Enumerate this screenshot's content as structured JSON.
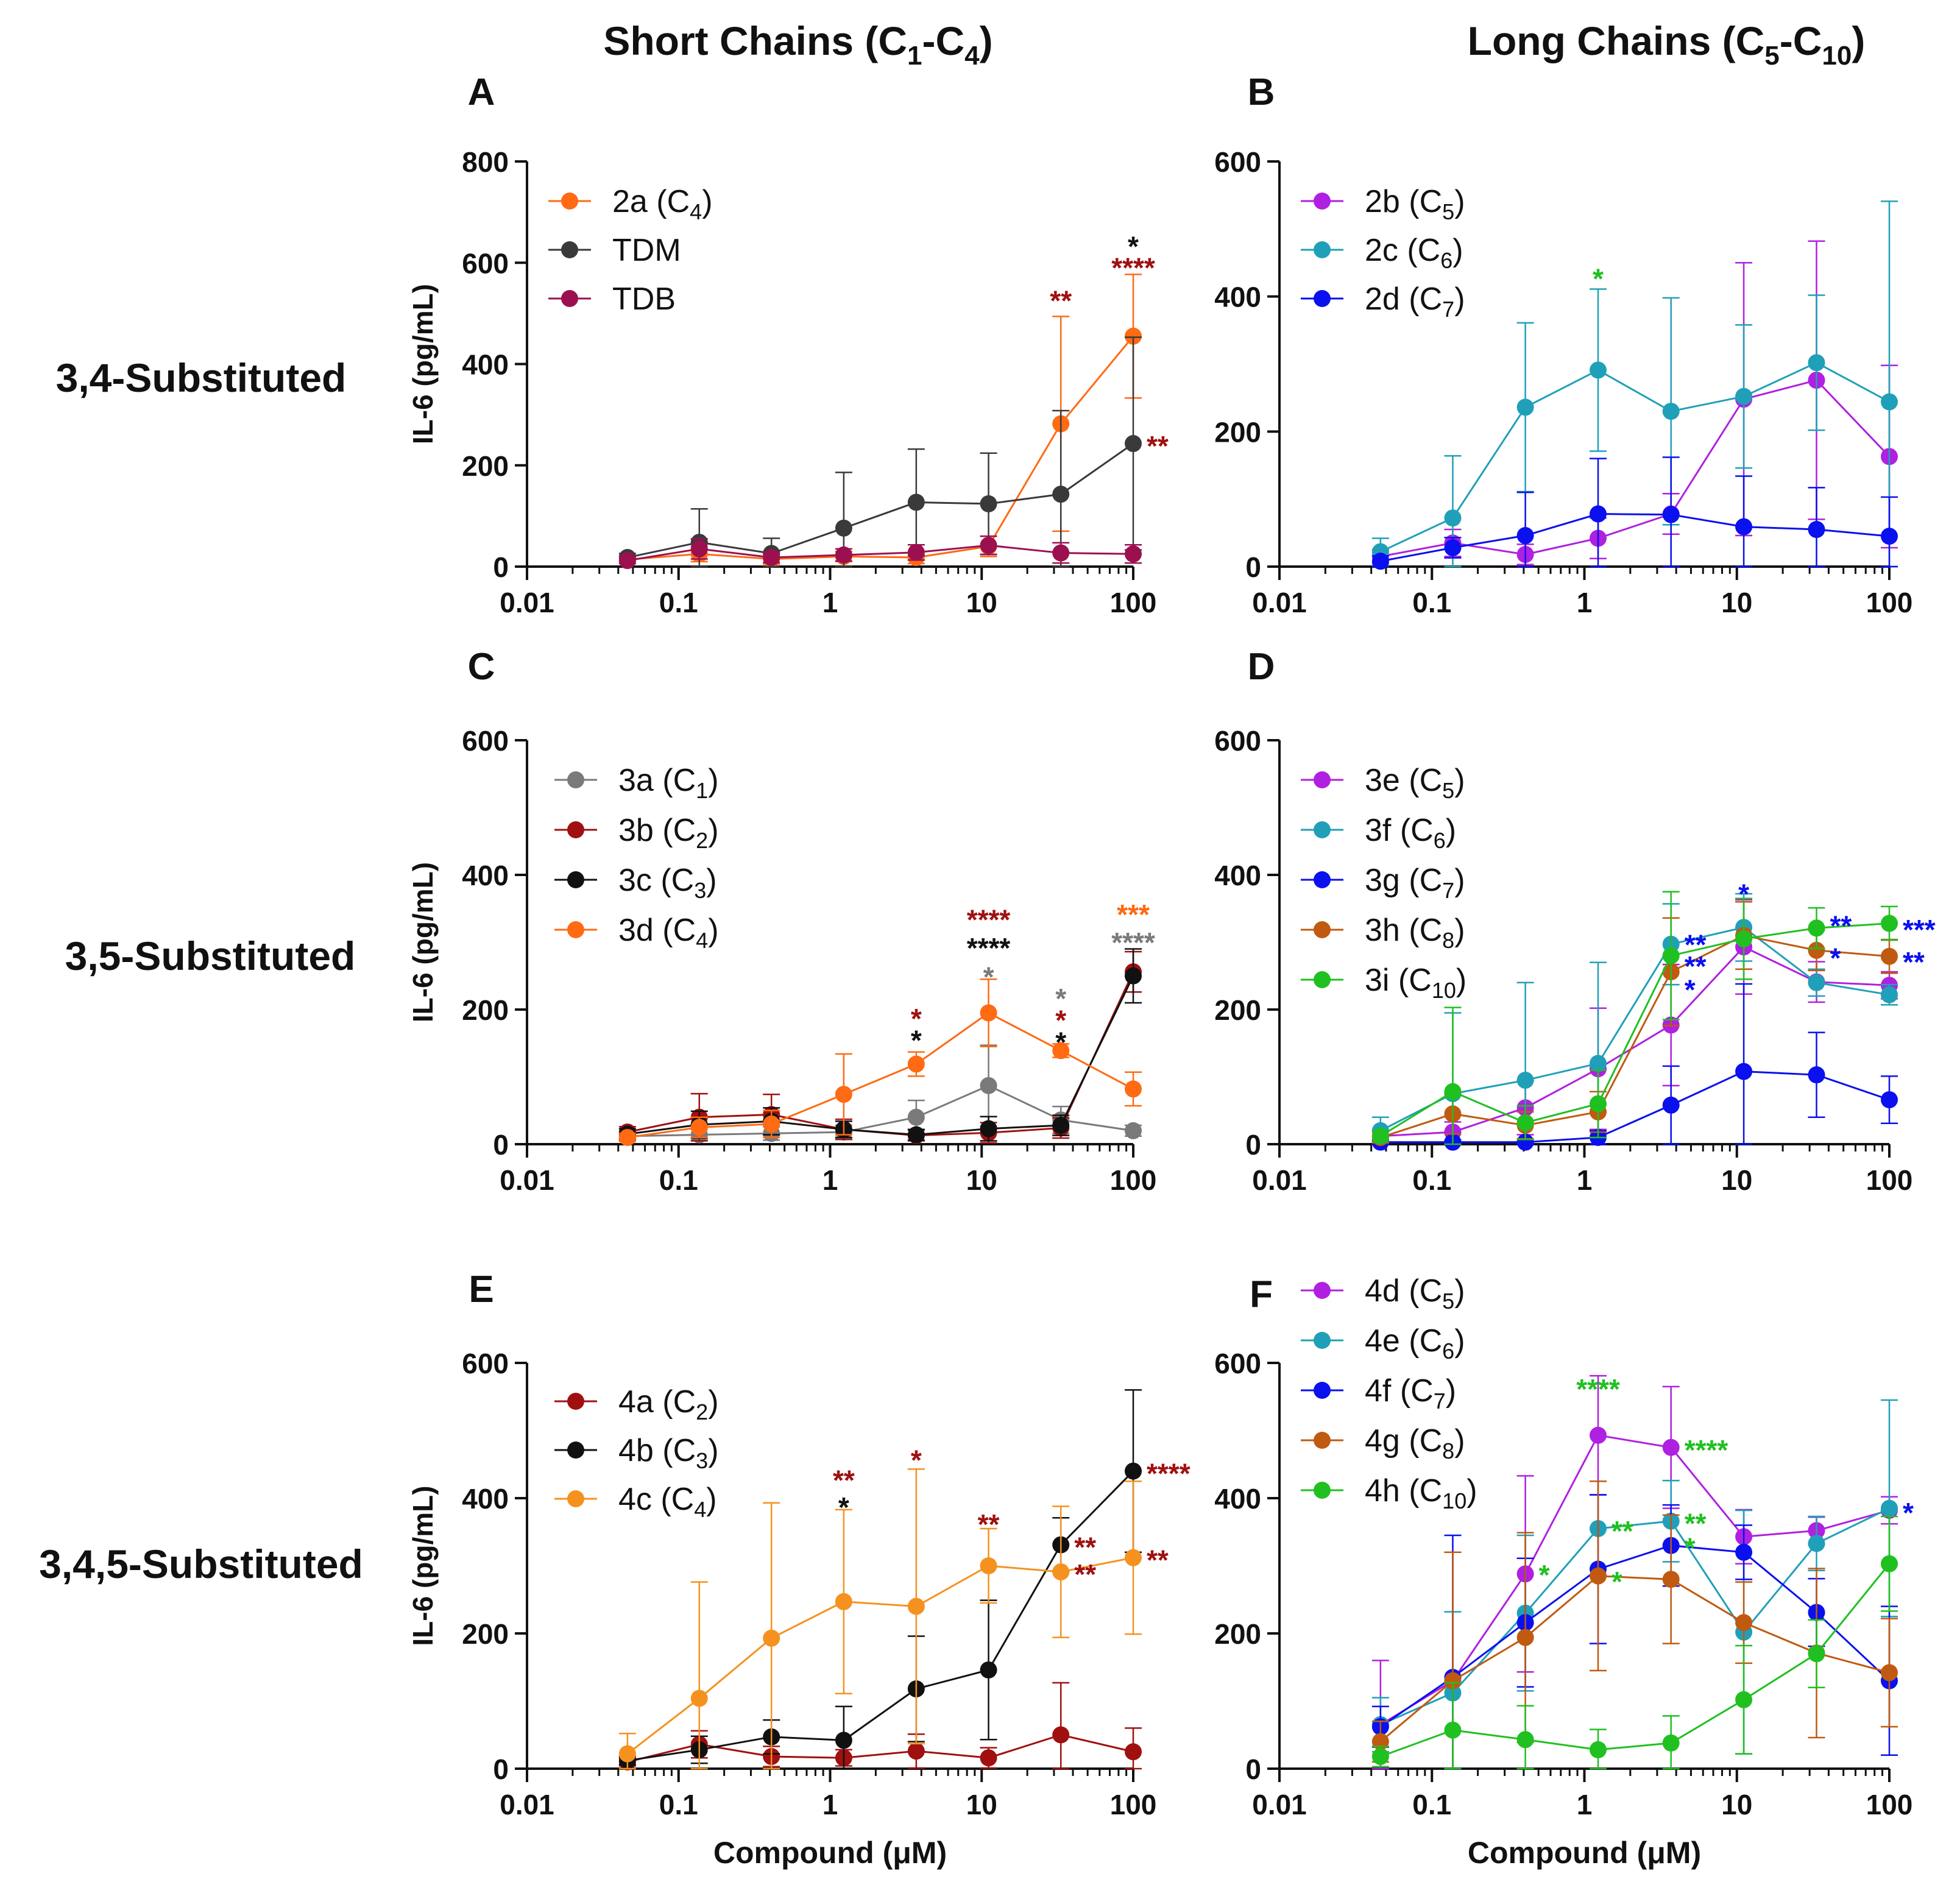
{
  "figure": {
    "col_headers": [
      {
        "main": "Short Chains (C",
        "s1": "1",
        "dash": "-C",
        "s2": "4",
        "close": ")"
      },
      {
        "main": "Long Chains (C",
        "s1": "5",
        "dash": "-C",
        "s2": "10",
        "close": ")"
      }
    ],
    "row_labels": [
      "3,4-Substituted",
      "3,5-Substituted",
      "3,4,5-Substituted"
    ],
    "colors": {
      "orange": "#ff6a13",
      "orange2": "#f5921f",
      "darkgray": "#3a3a3a",
      "gray": "#7a7a7a",
      "maroon": "#9c1050",
      "darkred": "#a01010",
      "black": "#111111",
      "magenta": "#b020e0",
      "teal": "#20a0b8",
      "blue": "#0a10ee",
      "brown": "#c05a10",
      "green": "#20c020"
    }
  },
  "chart_data": [
    {
      "panel": "A",
      "type": "line",
      "xlabel": "",
      "ylabel": "IL-6 (pg/mL)",
      "xscale": "log",
      "xlim": [
        0.01,
        100
      ],
      "ylim": [
        0,
        800
      ],
      "yticks": [
        0,
        200,
        400,
        600,
        800
      ],
      "xticks": [
        "0.01",
        "0.1",
        "1",
        "10",
        "100"
      ],
      "x": [
        0.046,
        0.137,
        0.41,
        1.23,
        3.7,
        11.1,
        33.3,
        100
      ],
      "series": [
        {
          "name": "2a",
          "sub": "4",
          "color": "#ff6a13",
          "values": [
            14,
            25,
            15,
            20,
            18,
            40,
            282,
            455
          ],
          "errors": [
            8,
            15,
            10,
            10,
            12,
            20,
            212,
            122
          ]
        },
        {
          "name": "TDM",
          "sub": "",
          "color": "#3a3a3a",
          "values": [
            18,
            48,
            26,
            76,
            127,
            124,
            143,
            243
          ],
          "errors": [
            8,
            66,
            30,
            110,
            105,
            100,
            165,
            210
          ]
        },
        {
          "name": "TDB",
          "sub": "",
          "color": "#9c1050",
          "values": [
            12,
            35,
            18,
            23,
            28,
            42,
            27,
            25
          ],
          "errors": [
            6,
            20,
            10,
            12,
            15,
            18,
            20,
            18
          ]
        }
      ],
      "annotations": [
        {
          "x": 33.3,
          "y": 530,
          "text": "**",
          "color": "#a01010"
        },
        {
          "x": 100,
          "y": 637,
          "text": "*",
          "color": "#111111"
        },
        {
          "x": 100,
          "y": 595,
          "text": "****",
          "color": "#a01010"
        },
        {
          "x": 100,
          "y": 243,
          "text": "**",
          "color": "#a01010",
          "side": "right"
        }
      ]
    },
    {
      "panel": "B",
      "type": "line",
      "xlabel": "",
      "ylabel": "",
      "xscale": "log",
      "xlim": [
        0.01,
        100
      ],
      "ylim": [
        0,
        600
      ],
      "yticks": [
        0,
        200,
        400,
        600
      ],
      "xticks": [
        "0.01",
        "0.1",
        "1",
        "10",
        "100"
      ],
      "x": [
        0.046,
        0.137,
        0.41,
        1.23,
        3.7,
        11.1,
        33.3,
        100
      ],
      "series": [
        {
          "name": "2b",
          "sub": "5",
          "color": "#b020e0",
          "values": [
            15,
            35,
            18,
            42,
            78,
            248,
            276,
            163
          ],
          "errors": [
            10,
            20,
            15,
            30,
            30,
            202,
            206,
            135
          ]
        },
        {
          "name": "2c",
          "sub": "6",
          "color": "#20a0b8",
          "values": [
            22,
            72,
            236,
            291,
            230,
            252,
            302,
            244
          ],
          "errors": [
            20,
            92,
            125,
            120,
            168,
            106,
            100,
            297
          ]
        },
        {
          "name": "2d",
          "sub": "7",
          "color": "#0a10ee",
          "values": [
            8,
            28,
            46,
            78,
            77,
            59,
            55,
            45
          ],
          "errors": [
            8,
            15,
            64,
            82,
            85,
            75,
            62,
            58
          ]
        }
      ],
      "annotations": [
        {
          "x": 1.23,
          "y": 430,
          "text": "*",
          "color": "#20c020"
        }
      ]
    },
    {
      "panel": "C",
      "type": "line",
      "xlabel": "",
      "ylabel": "IL-6 (pg/mL)",
      "xscale": "log",
      "xlim": [
        0.01,
        100
      ],
      "ylim": [
        0,
        600
      ],
      "yticks": [
        0,
        200,
        400,
        600
      ],
      "xticks": [
        "0.01",
        "0.1",
        "1",
        "10",
        "100"
      ],
      "x": [
        0.046,
        0.137,
        0.41,
        1.23,
        3.7,
        11.1,
        33.3,
        100
      ],
      "series": [
        {
          "name": "3a",
          "sub": "1",
          "color": "#7a7a7a",
          "values": [
            12,
            14,
            16,
            18,
            40,
            87,
            36,
            20
          ],
          "errors": [
            6,
            8,
            10,
            10,
            25,
            60,
            20,
            8
          ]
        },
        {
          "name": "3b",
          "sub": "2",
          "color": "#a01010",
          "values": [
            18,
            40,
            44,
            22,
            13,
            17,
            24,
            256
          ],
          "errors": [
            8,
            35,
            30,
            15,
            8,
            15,
            15,
            30
          ]
        },
        {
          "name": "3c",
          "sub": "3",
          "color": "#111111",
          "values": [
            15,
            29,
            34,
            22,
            14,
            23,
            28,
            250
          ],
          "errors": [
            8,
            20,
            20,
            12,
            8,
            18,
            15,
            40
          ]
        },
        {
          "name": "3d",
          "sub": "4",
          "color": "#ff6a13",
          "values": [
            10,
            25,
            30,
            74,
            119,
            195,
            139,
            82
          ],
          "errors": [
            6,
            15,
            20,
            60,
            18,
            50,
            10,
            25
          ]
        }
      ],
      "annotations": [
        {
          "x": 3.7,
          "y": 190,
          "text": "*",
          "color": "#a01010"
        },
        {
          "x": 3.7,
          "y": 158,
          "text": "*",
          "color": "#111111"
        },
        {
          "x": 11.1,
          "y": 337,
          "text": "****",
          "color": "#a01010"
        },
        {
          "x": 11.1,
          "y": 295,
          "text": "****",
          "color": "#111111"
        },
        {
          "x": 11.1,
          "y": 252,
          "text": "*",
          "color": "#7a7a7a"
        },
        {
          "x": 33.3,
          "y": 220,
          "text": "*",
          "color": "#7a7a7a"
        },
        {
          "x": 33.3,
          "y": 188,
          "text": "*",
          "color": "#a01010"
        },
        {
          "x": 33.3,
          "y": 155,
          "text": "*",
          "color": "#111111"
        },
        {
          "x": 100,
          "y": 345,
          "text": "***",
          "color": "#ff6a13"
        },
        {
          "x": 100,
          "y": 303,
          "text": "****",
          "color": "#7a7a7a"
        }
      ]
    },
    {
      "panel": "D",
      "type": "line",
      "xlabel": "",
      "ylabel": "",
      "xscale": "log",
      "xlim": [
        0.01,
        100
      ],
      "ylim": [
        0,
        600
      ],
      "yticks": [
        0,
        200,
        400,
        600
      ],
      "xticks": [
        "0.01",
        "0.1",
        "1",
        "10",
        "100"
      ],
      "x": [
        0.046,
        0.137,
        0.41,
        1.23,
        3.7,
        11.1,
        33.3,
        100
      ],
      "series": [
        {
          "name": "3e",
          "sub": "5",
          "color": "#b020e0",
          "values": [
            12,
            18,
            54,
            112,
            177,
            293,
            241,
            236
          ],
          "errors": [
            8,
            15,
            40,
            90,
            90,
            70,
            30,
            20
          ]
        },
        {
          "name": "3f",
          "sub": "6",
          "color": "#20a0b8",
          "values": [
            20,
            75,
            95,
            120,
            297,
            322,
            240,
            222
          ],
          "errors": [
            20,
            120,
            145,
            150,
            60,
            50,
            20,
            15
          ]
        },
        {
          "name": "3g",
          "sub": "7",
          "color": "#0a10ee",
          "values": [
            3,
            3,
            3,
            10,
            58,
            108,
            103,
            66
          ],
          "errors": [
            3,
            3,
            3,
            10,
            58,
            130,
            63,
            35
          ]
        },
        {
          "name": "3h",
          "sub": "8",
          "color": "#c05a10",
          "values": [
            10,
            45,
            28,
            48,
            256,
            310,
            288,
            279
          ],
          "errors": [
            8,
            30,
            20,
            30,
            80,
            50,
            30,
            25
          ]
        },
        {
          "name": "3i",
          "sub": "10",
          "color": "#20c020",
          "values": [
            12,
            78,
            32,
            60,
            280,
            305,
            321,
            328
          ],
          "errors": [
            8,
            125,
            25,
            50,
            95,
            60,
            30,
            25
          ]
        }
      ],
      "annotations": [
        {
          "x": 3.7,
          "y": 300,
          "text": "**",
          "color": "#0a10ee",
          "side": "right"
        },
        {
          "x": 3.7,
          "y": 268,
          "text": "**",
          "color": "#0a10ee",
          "side": "right"
        },
        {
          "x": 3.7,
          "y": 233,
          "text": "*",
          "color": "#0a10ee",
          "side": "right"
        },
        {
          "x": 11.1,
          "y": 375,
          "text": "*",
          "color": "#0a10ee"
        },
        {
          "x": 33.3,
          "y": 328,
          "text": "**",
          "color": "#0a10ee",
          "side": "right"
        },
        {
          "x": 33.3,
          "y": 280,
          "text": "*",
          "color": "#0a10ee",
          "side": "right"
        },
        {
          "x": 100,
          "y": 322,
          "text": "***",
          "color": "#0a10ee",
          "side": "right"
        },
        {
          "x": 100,
          "y": 274,
          "text": "**",
          "color": "#0a10ee",
          "side": "right"
        }
      ]
    },
    {
      "panel": "E",
      "type": "line",
      "xlabel": "Compound (μM)",
      "ylabel": "IL-6 (pg/mL)",
      "xscale": "log",
      "xlim": [
        0.01,
        100
      ],
      "ylim": [
        0,
        600
      ],
      "yticks": [
        0,
        200,
        400,
        600
      ],
      "xticks": [
        "0.01",
        "0.1",
        "1",
        "10",
        "100"
      ],
      "x": [
        0.046,
        0.137,
        0.41,
        1.23,
        3.7,
        11.1,
        33.3,
        100
      ],
      "series": [
        {
          "name": "4a",
          "sub": "2",
          "color": "#a01010",
          "values": [
            10,
            36,
            18,
            16,
            26,
            16,
            50,
            25
          ],
          "errors": [
            6,
            20,
            15,
            12,
            25,
            15,
            77,
            35
          ]
        },
        {
          "name": "4b",
          "sub": "3",
          "color": "#111111",
          "values": [
            12,
            28,
            47,
            42,
            118,
            146,
            331,
            440
          ],
          "errors": [
            6,
            20,
            25,
            50,
            78,
            103,
            40,
            120
          ]
        },
        {
          "name": "4c",
          "sub": "4",
          "color": "#f5921f",
          "values": [
            22,
            104,
            193,
            247,
            240,
            300,
            291,
            312
          ],
          "errors": [
            30,
            172,
            200,
            136,
            203,
            55,
            97,
            113
          ]
        }
      ],
      "annotations": [
        {
          "x": 1.23,
          "y": 430,
          "text": "**",
          "color": "#a01010"
        },
        {
          "x": 1.23,
          "y": 390,
          "text": "*",
          "color": "#111111"
        },
        {
          "x": 3.7,
          "y": 460,
          "text": "*",
          "color": "#a01010"
        },
        {
          "x": 11.1,
          "y": 365,
          "text": "**",
          "color": "#a01010"
        },
        {
          "x": 33.3,
          "y": 331,
          "text": "**",
          "color": "#a01010",
          "side": "right"
        },
        {
          "x": 33.3,
          "y": 291,
          "text": "**",
          "color": "#a01010",
          "side": "right"
        },
        {
          "x": 100,
          "y": 440,
          "text": "****",
          "color": "#a01010",
          "side": "right"
        },
        {
          "x": 100,
          "y": 312,
          "text": "**",
          "color": "#a01010",
          "side": "right"
        }
      ]
    },
    {
      "panel": "F",
      "type": "line",
      "xlabel": "Compound (μM)",
      "ylabel": "",
      "xscale": "log",
      "xlim": [
        0.01,
        100
      ],
      "ylim": [
        0,
        600
      ],
      "yticks": [
        0,
        200,
        400,
        600
      ],
      "xticks": [
        "0.01",
        "0.1",
        "1",
        "10",
        "100"
      ],
      "x": [
        0.046,
        0.137,
        0.41,
        1.23,
        3.7,
        11.1,
        33.3,
        100
      ],
      "series": [
        {
          "name": "4d",
          "sub": "5",
          "color": "#b020e0",
          "values": [
            65,
            130,
            288,
            493,
            475,
            343,
            352,
            382
          ],
          "errors": [
            95,
            190,
            145,
            88,
            90,
            40,
            20,
            20
          ]
        },
        {
          "name": "4e",
          "sub": "6",
          "color": "#20a0b8",
          "values": [
            65,
            112,
            230,
            355,
            366,
            202,
            333,
            385
          ],
          "errors": [
            40,
            120,
            115,
            70,
            60,
            180,
            40,
            160
          ]
        },
        {
          "name": "4f",
          "sub": "7",
          "color": "#0a10ee",
          "values": [
            62,
            135,
            216,
            295,
            330,
            320,
            231,
            130
          ],
          "errors": [
            30,
            210,
            95,
            110,
            60,
            40,
            50,
            110
          ]
        },
        {
          "name": "4g",
          "sub": "8",
          "color": "#c05a10",
          "values": [
            40,
            130,
            194,
            285,
            280,
            216,
            171,
            142
          ],
          "errors": [
            30,
            190,
            155,
            140,
            95,
            60,
            125,
            80
          ]
        },
        {
          "name": "4h",
          "sub": "10",
          "color": "#20c020",
          "values": [
            18,
            57,
            43,
            28,
            38,
            102,
            170,
            303
          ],
          "errors": [
            15,
            70,
            50,
            30,
            40,
            80,
            50,
            70
          ]
        }
      ],
      "annotations": [
        {
          "x": 1.23,
          "y": 565,
          "text": "****",
          "color": "#20c020"
        },
        {
          "x": 0.41,
          "y": 290,
          "text": "*",
          "color": "#20c020",
          "side": "right"
        },
        {
          "x": 1.23,
          "y": 355,
          "text": "**",
          "color": "#20c020",
          "side": "right"
        },
        {
          "x": 1.23,
          "y": 280,
          "text": "*",
          "color": "#20c020",
          "side": "right"
        },
        {
          "x": 3.7,
          "y": 475,
          "text": "****",
          "color": "#20c020",
          "side": "right"
        },
        {
          "x": 3.7,
          "y": 366,
          "text": "**",
          "color": "#20c020",
          "side": "right"
        },
        {
          "x": 3.7,
          "y": 330,
          "text": "*",
          "color": "#20c020",
          "side": "right"
        },
        {
          "x": 100,
          "y": 382,
          "text": "*",
          "color": "#0a10ee",
          "side": "right"
        }
      ]
    }
  ]
}
